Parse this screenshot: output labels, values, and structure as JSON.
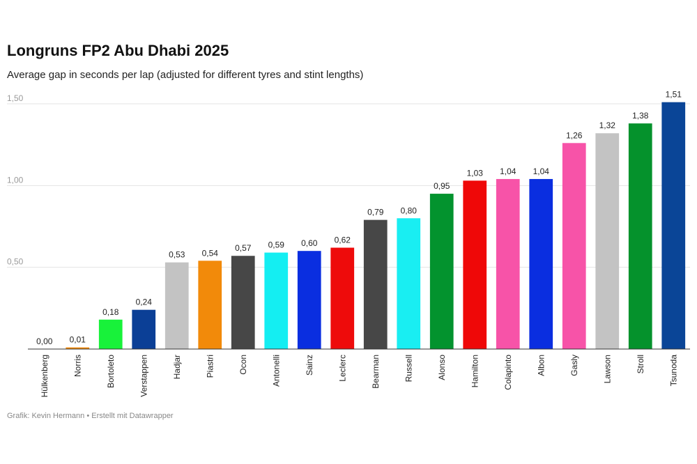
{
  "header": {
    "title": "Longruns FP2 Abu Dhabi 2025",
    "subtitle": "Average gap in seconds per lap (adjusted for different tyres and stint lengths)"
  },
  "footer": {
    "credit": "Grafik: Kevin Hermann • Erstellt mit Datawrapper"
  },
  "chart_data": {
    "type": "bar",
    "title": "Longruns FP2 Abu Dhabi 2025",
    "subtitle": "Average gap in seconds per lap (adjusted for different tyres and stint lengths)",
    "xlabel": "",
    "ylabel": "",
    "ylim": [
      0,
      1.5
    ],
    "yticks": [
      {
        "value": 0.5,
        "label": "0,50"
      },
      {
        "value": 1.0,
        "label": "1,00"
      },
      {
        "value": 1.5,
        "label": "1,50"
      }
    ],
    "categories": [
      "Hülkenberg",
      "Norris",
      "Bortoleto",
      "Verstappen",
      "Hadjar",
      "Piastri",
      "Ocon",
      "Antonelli",
      "Sainz",
      "Leclerc",
      "Bearman",
      "Russell",
      "Alonso",
      "Hamilton",
      "Colapinto",
      "Albon",
      "Gasly",
      "Lawson",
      "Stroll",
      "Tsunoda"
    ],
    "values": [
      0.0,
      0.01,
      0.18,
      0.24,
      0.53,
      0.54,
      0.57,
      0.59,
      0.6,
      0.62,
      0.79,
      0.8,
      0.95,
      1.03,
      1.04,
      1.04,
      1.26,
      1.32,
      1.38,
      1.51
    ],
    "value_labels": [
      "0,00",
      "0,01",
      "0,18",
      "0,24",
      "0,53",
      "0,54",
      "0,57",
      "0,59",
      "0,60",
      "0,62",
      "0,79",
      "0,80",
      "0,95",
      "1,03",
      "1,04",
      "1,04",
      "1,26",
      "1,32",
      "1,38",
      "1,51"
    ],
    "colors": [
      "#8a8a8a",
      "#f28a0a",
      "#18f23a",
      "#0b3f96",
      "#c3c3c3",
      "#f28a0a",
      "#474747",
      "#14eef2",
      "#0a2ee0",
      "#ee0b0b",
      "#474747",
      "#19eef2",
      "#03932e",
      "#ef0808",
      "#f753a8",
      "#0a2ee0",
      "#f753a8",
      "#c3c3c3",
      "#05922c",
      "#0a4597"
    ],
    "grid": true,
    "legend": "none"
  }
}
